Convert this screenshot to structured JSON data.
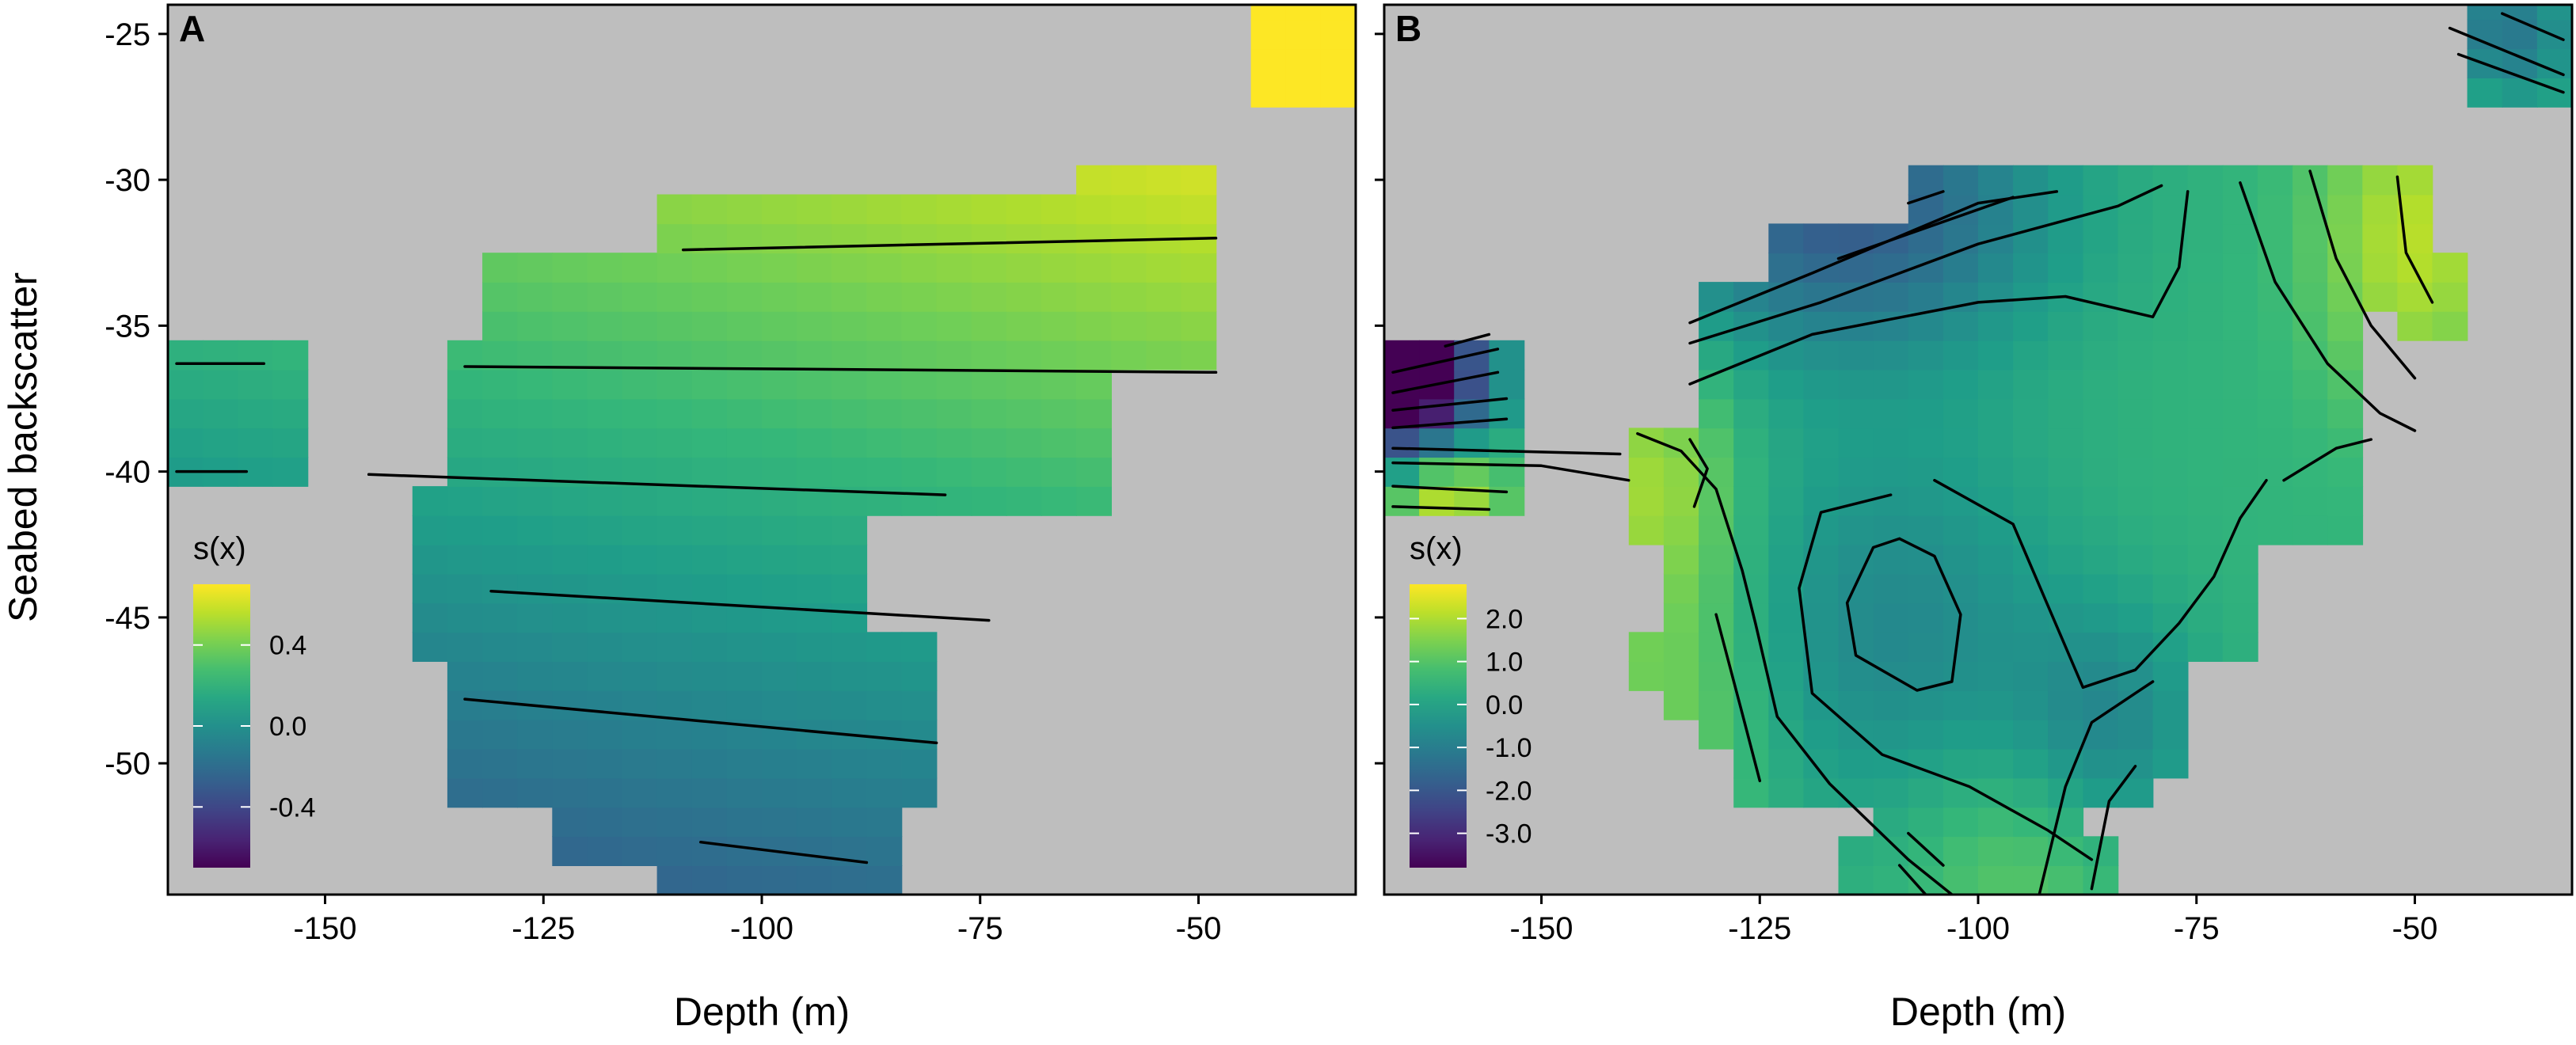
{
  "figure": {
    "ylabel": "Seabed backscatter",
    "xlabel_shared": "Depth (m)"
  },
  "chart_data": [
    {
      "type": "heatmap",
      "panel_label": "A",
      "xlabel": "Depth (m)",
      "ylabel": "Seabed backscatter",
      "xlim": [
        -168,
        -32
      ],
      "ylim": [
        -54.5,
        -24
      ],
      "x_ticks": [
        -150,
        -125,
        -100,
        -75,
        -50
      ],
      "x_tick_labels": [
        "-150",
        "-125",
        "-100",
        "-75",
        "-50"
      ],
      "y_ticks": [
        -25,
        -30,
        -35,
        -40,
        -45,
        -50
      ],
      "y_tick_labels": [
        "-25",
        "-30",
        "-35",
        "-40",
        "-45",
        "-50"
      ],
      "legend": {
        "title": "s(x)",
        "range": [
          -0.7,
          0.7
        ],
        "breaks": [
          0.4,
          0.0,
          -0.4
        ],
        "break_labels": [
          "0.4",
          "0.0",
          "-0.4"
        ]
      },
      "field": {
        "model": "linear",
        "intercept": 0.2,
        "slope_x": 0.002,
        "slope_y": 0.03
      },
      "contour_lines": [
        {
          "points": [
            [
              -167,
              -36.3
            ],
            [
              -157,
              -36.3
            ]
          ]
        },
        {
          "points": [
            [
              -167,
              -40
            ],
            [
              -159,
              -40
            ]
          ]
        },
        {
          "points": [
            [
              -109,
              -32.4
            ],
            [
              -48,
              -32
            ]
          ]
        },
        {
          "points": [
            [
              -134,
              -36.4
            ],
            [
              -48,
              -36.6
            ]
          ]
        },
        {
          "points": [
            [
              -145,
              -40.1
            ],
            [
              -79,
              -40.8
            ]
          ]
        },
        {
          "points": [
            [
              -131,
              -44.1
            ],
            [
              -74,
              -45.1
            ]
          ]
        },
        {
          "points": [
            [
              -134,
              -47.8
            ],
            [
              -80,
              -49.3
            ]
          ]
        },
        {
          "points": [
            [
              -107,
              -52.7
            ],
            [
              -88,
              -53.4
            ]
          ]
        }
      ],
      "regions": [
        {
          "x": [
            -168,
            -154
          ],
          "y": [
            -40,
            -36
          ]
        },
        {
          "x": [
            -137,
            -105
          ],
          "y": [
            -44,
            -37
          ]
        },
        {
          "x": [
            -136,
            -60
          ],
          "y": [
            -41,
            -36
          ]
        },
        {
          "x": [
            -138,
            -90
          ],
          "y": [
            -46,
            -41
          ]
        },
        {
          "x": [
            -134,
            -80
          ],
          "y": [
            -51,
            -46
          ]
        },
        {
          "x": [
            -124,
            -85
          ],
          "y": [
            -53,
            -51
          ]
        },
        {
          "x": [
            -112,
            -86
          ],
          "y": [
            -54.5,
            -52
          ]
        },
        {
          "x": [
            -133,
            -50
          ],
          "y": [
            -36,
            -33
          ]
        },
        {
          "x": [
            -110,
            -48
          ],
          "y": [
            -33,
            -30.5
          ]
        },
        {
          "x": [
            -63,
            -50
          ],
          "y": [
            -31,
            -29.5
          ]
        },
        {
          "x": [
            -45,
            -32
          ],
          "y": [
            -27,
            -24
          ]
        }
      ]
    },
    {
      "type": "heatmap",
      "panel_label": "B",
      "xlabel": "Depth (m)",
      "ylabel": "",
      "xlim": [
        -168,
        -32
      ],
      "ylim": [
        -54.5,
        -24
      ],
      "x_ticks": [
        -150,
        -125,
        -100,
        -75,
        -50
      ],
      "x_tick_labels": [
        "-150",
        "-125",
        "-100",
        "-75",
        "-50"
      ],
      "y_ticks": [
        -25,
        -30,
        -35,
        -40,
        -45,
        -50
      ],
      "legend": {
        "title": "s(x)",
        "range": [
          -3.8,
          2.8
        ],
        "breaks": [
          2.0,
          1.0,
          0.0,
          -1.0,
          -2.0,
          -3.0
        ],
        "break_labels": [
          "2.0",
          "1.0",
          "0.0",
          "-1.0",
          "-2.0",
          "-3.0"
        ]
      },
      "field": {
        "model": "radial",
        "base": 0.5,
        "bumps": [
          {
            "x": -110,
            "y": -45.5,
            "amp": -1.2,
            "sx": 14,
            "sy": 5
          },
          {
            "x": -115,
            "y": -31,
            "amp": -2.4,
            "sx": 16,
            "sy": 3.5
          },
          {
            "x": -165,
            "y": -37,
            "amp": -5.5,
            "sx": 6,
            "sy": 2.5
          },
          {
            "x": -162,
            "y": -40.5,
            "amp": 3.0,
            "sx": 5,
            "sy": 1.5
          },
          {
            "x": -50,
            "y": -32,
            "amp": 1.6,
            "sx": 8,
            "sy": 4
          },
          {
            "x": -40,
            "y": -25,
            "amp": -1.8,
            "sx": 6,
            "sy": 2
          },
          {
            "x": -135,
            "y": -48,
            "amp": 1.0,
            "sx": 8,
            "sy": 5
          },
          {
            "x": -95,
            "y": -53,
            "amp": 0.8,
            "sx": 10,
            "sy": 3
          },
          {
            "x": -85,
            "y": -49,
            "amp": -1.2,
            "sx": 8,
            "sy": 3
          },
          {
            "x": -137,
            "y": -40,
            "amp": 1.2,
            "sx": 6,
            "sy": 3
          }
        ]
      },
      "contour_lines": [
        {
          "points": [
            [
              -108,
              -30.8
            ],
            [
              -104,
              -30.4
            ]
          ]
        },
        {
          "points": [
            [
              -116,
              -32.7
            ],
            [
              -96,
              -30.6
            ]
          ]
        },
        {
          "points": [
            [
              -133,
              -34.9
            ],
            [
              -119,
              -33.2
            ],
            [
              -100,
              -30.8
            ],
            [
              -91,
              -30.4
            ]
          ]
        },
        {
          "points": [
            [
              -133,
              -35.6
            ],
            [
              -118,
              -34.2
            ],
            [
              -100,
              -32.2
            ],
            [
              -84,
              -30.9
            ],
            [
              -79,
              -30.2
            ]
          ]
        },
        {
          "points": [
            [
              -133,
              -37
            ],
            [
              -119,
              -35.3
            ],
            [
              -100,
              -34.2
            ],
            [
              -90,
              -34
            ],
            [
              -80,
              -34.7
            ],
            [
              -77,
              -33
            ],
            [
              -76,
              -30.4
            ]
          ]
        },
        {
          "points": [
            [
              -70,
              -30.1
            ],
            [
              -66,
              -33.5
            ],
            [
              -60,
              -36.3
            ],
            [
              -54,
              -38
            ],
            [
              -50,
              -38.6
            ]
          ]
        },
        {
          "points": [
            [
              -62,
              -29.7
            ],
            [
              -59,
              -32.7
            ],
            [
              -55,
              -35
            ],
            [
              -50,
              -36.8
            ]
          ]
        },
        {
          "points": [
            [
              -52,
              -29.9
            ],
            [
              -51,
              -32.5
            ],
            [
              -48,
              -34.2
            ]
          ]
        },
        {
          "points": [
            [
              -65,
              -40.3
            ],
            [
              -59,
              -39.2
            ],
            [
              -55,
              -38.9
            ]
          ]
        },
        {
          "points": [
            [
              -161,
              -35.7
            ],
            [
              -156,
              -35.3
            ]
          ]
        },
        {
          "points": [
            [
              -167,
              -36.6
            ],
            [
              -155,
              -35.8
            ]
          ]
        },
        {
          "points": [
            [
              -167,
              -37.3
            ],
            [
              -155,
              -36.6
            ]
          ]
        },
        {
          "points": [
            [
              -167,
              -37.9
            ],
            [
              -154,
              -37.5
            ]
          ]
        },
        {
          "points": [
            [
              -167,
              -38.5
            ],
            [
              -154,
              -38.2
            ]
          ]
        },
        {
          "points": [
            [
              -167,
              -39.2
            ],
            [
              -141,
              -39.4
            ]
          ]
        },
        {
          "points": [
            [
              -167,
              -39.7
            ],
            [
              -150,
              -39.8
            ],
            [
              -144,
              -40.1
            ],
            [
              -140,
              -40.3
            ]
          ]
        },
        {
          "points": [
            [
              -167,
              -40.5
            ],
            [
              -154,
              -40.7
            ]
          ]
        },
        {
          "points": [
            [
              -167,
              -41.2
            ],
            [
              -156,
              -41.3
            ]
          ]
        },
        {
          "points": [
            [
              -139,
              -38.7
            ],
            [
              -134,
              -39.3
            ],
            [
              -130,
              -40.6
            ],
            [
              -127,
              -43.4
            ],
            [
              -125.5,
              -45.2
            ],
            [
              -123,
              -48.4
            ],
            [
              -117,
              -50.7
            ],
            [
              -108,
              -53.3
            ],
            [
              -103,
              -54.5
            ]
          ]
        },
        {
          "points": [
            [
              -133,
              -38.9
            ],
            [
              -131,
              -39.9
            ],
            [
              -132.5,
              -41.2
            ]
          ]
        },
        {
          "points": [
            [
              -130,
              -44.9
            ],
            [
              -127,
              -48.3
            ],
            [
              -125,
              -50.6
            ]
          ]
        },
        {
          "points": [
            [
              -109,
              -42.3
            ],
            [
              -105,
              -42.9
            ],
            [
              -102,
              -44.9
            ],
            [
              -103,
              -47.2
            ],
            [
              -107,
              -47.5
            ],
            [
              -114,
              -46.3
            ],
            [
              -115,
              -44.5
            ],
            [
              -112,
              -42.6
            ],
            [
              -109,
              -42.3
            ]
          ]
        },
        {
          "points": [
            [
              -105,
              -40.3
            ],
            [
              -96,
              -41.8
            ],
            [
              -92,
              -44.6
            ],
            [
              -88,
              -47.4
            ],
            [
              -82,
              -46.8
            ],
            [
              -77,
              -45.2
            ],
            [
              -73,
              -43.6
            ],
            [
              -70,
              -41.6
            ],
            [
              -67,
              -40.3
            ]
          ]
        },
        {
          "points": [
            [
              -110,
              -40.8
            ],
            [
              -118,
              -41.4
            ],
            [
              -120.5,
              -44
            ],
            [
              -119,
              -47.6
            ],
            [
              -111,
              -49.7
            ],
            [
              -101,
              -50.8
            ],
            [
              -92,
              -52.3
            ],
            [
              -87,
              -53.3
            ]
          ]
        },
        {
          "points": [
            [
              -87,
              -54.3
            ],
            [
              -85,
              -51.3
            ],
            [
              -82,
              -50.1
            ]
          ]
        },
        {
          "points": [
            [
              -93,
              -54.5
            ],
            [
              -90,
              -50.8
            ],
            [
              -87,
              -48.6
            ],
            [
              -82,
              -47.6
            ],
            [
              -80,
              -47.2
            ]
          ]
        },
        {
          "points": [
            [
              -109,
              -53.5
            ],
            [
              -106,
              -54.5
            ]
          ]
        },
        {
          "points": [
            [
              -108,
              -52.4
            ],
            [
              -104,
              -53.5
            ]
          ]
        },
        {
          "points": [
            [
              -40,
              -24.3
            ],
            [
              -33,
              -25.2
            ]
          ]
        },
        {
          "points": [
            [
              -46,
              -24.8
            ],
            [
              -33,
              -26.4
            ]
          ]
        },
        {
          "points": [
            [
              -45,
              -25.7
            ],
            [
              -33,
              -27
            ]
          ]
        }
      ],
      "regions": [
        {
          "x": [
            -168,
            -153
          ],
          "y": [
            -41.5,
            -35.5
          ]
        },
        {
          "x": [
            -133,
            -55
          ],
          "y": [
            -40,
            -34
          ]
        },
        {
          "x": [
            -137,
            -57
          ],
          "y": [
            -42,
            -40
          ]
        },
        {
          "x": [
            -134,
            -70
          ],
          "y": [
            -46,
            -42
          ]
        },
        {
          "x": [
            -133,
            -76
          ],
          "y": [
            -49,
            -46
          ]
        },
        {
          "x": [
            -128,
            -80
          ],
          "y": [
            -51,
            -49
          ]
        },
        {
          "x": [
            -110,
            -88
          ],
          "y": [
            -53,
            -51
          ]
        },
        {
          "x": [
            -106,
            -86
          ],
          "y": [
            -54.5,
            -53
          ]
        },
        {
          "x": [
            -122,
            -48
          ],
          "y": [
            -34,
            -32
          ]
        },
        {
          "x": [
            -107,
            -50
          ],
          "y": [
            -32,
            -30
          ]
        },
        {
          "x": [
            -69,
            -51
          ],
          "y": [
            -30,
            -29.5
          ]
        },
        {
          "x": [
            -50,
            -46
          ],
          "y": [
            -35.5,
            -33
          ]
        },
        {
          "x": [
            -135,
            -130
          ],
          "y": [
            -48,
            -45.5
          ]
        },
        {
          "x": [
            -140,
            -135
          ],
          "y": [
            -47,
            -46
          ]
        },
        {
          "x": [
            -140,
            -133
          ],
          "y": [
            -42,
            -39
          ]
        },
        {
          "x": [
            -115,
            -109
          ],
          "y": [
            -54.5,
            -52.5
          ]
        },
        {
          "x": [
            -80,
            -77
          ],
          "y": [
            -50,
            -48.5
          ]
        },
        {
          "x": [
            -42,
            -32
          ],
          "y": [
            -27,
            -24
          ]
        }
      ]
    }
  ]
}
